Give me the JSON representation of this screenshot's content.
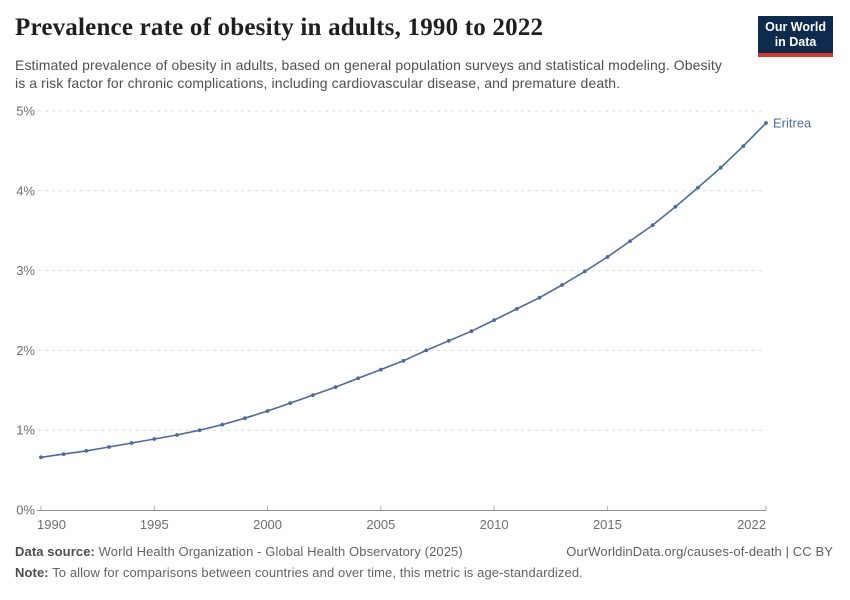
{
  "header": {
    "title": "Prevalence rate of obesity in adults, 1990 to 2022",
    "subtitle": "Estimated prevalence of obesity in adults, based on general population surveys and statistical modeling. Obesity is a risk factor for chronic complications, including cardiovascular disease, and premature death.",
    "logo_line1": "Our World",
    "logo_line2": "in Data",
    "logo_bg_color": "#0e2a4d",
    "logo_accent_color": "#d5382d"
  },
  "chart_data": {
    "type": "line",
    "title": "Prevalence rate of obesity in adults, 1990 to 2022",
    "xlabel": "",
    "ylabel": "",
    "xlim": [
      1990,
      2022
    ],
    "ylim": [
      0,
      5
    ],
    "grid": "horizontal-dashed",
    "legend_position": "end-of-line-label",
    "x_tick_labels": [
      1990,
      1995,
      2000,
      2005,
      2010,
      2015,
      2022
    ],
    "y_tick_labels": [
      "0%",
      "1%",
      "2%",
      "3%",
      "4%",
      "5%"
    ],
    "y_tick_values": [
      0,
      1,
      2,
      3,
      4,
      5
    ],
    "line_color": "#4c6a9c",
    "grid_color": "#dcdcdc",
    "axis_color": "#8f8f8f",
    "tick_color": "#b3b3b3",
    "tick_label_color": "#6e6e6e",
    "series": [
      {
        "name": "Eritrea",
        "color": "#4c6a9c",
        "x": [
          1990,
          1991,
          1992,
          1993,
          1994,
          1995,
          1996,
          1997,
          1998,
          1999,
          2000,
          2001,
          2002,
          2003,
          2004,
          2005,
          2006,
          2007,
          2008,
          2009,
          2010,
          2011,
          2012,
          2013,
          2014,
          2015,
          2016,
          2017,
          2018,
          2019,
          2020,
          2021,
          2022
        ],
        "values": [
          0.66,
          0.7,
          0.74,
          0.79,
          0.84,
          0.89,
          0.94,
          1.0,
          1.07,
          1.15,
          1.24,
          1.34,
          1.44,
          1.54,
          1.65,
          1.76,
          1.87,
          2.0,
          2.12,
          2.24,
          2.38,
          2.52,
          2.66,
          2.82,
          2.99,
          3.17,
          3.37,
          3.57,
          3.8,
          4.04,
          4.29,
          4.56,
          4.85
        ]
      }
    ]
  },
  "footer": {
    "source_label": "Data source:",
    "source_text": "World Health Organization - Global Health Observatory (2025)",
    "link": "OurWorldinData.org/causes-of-death | CC BY",
    "note_label": "Note:",
    "note_text": "To allow for comparisons between countries and over time, this metric is age-standardized."
  }
}
